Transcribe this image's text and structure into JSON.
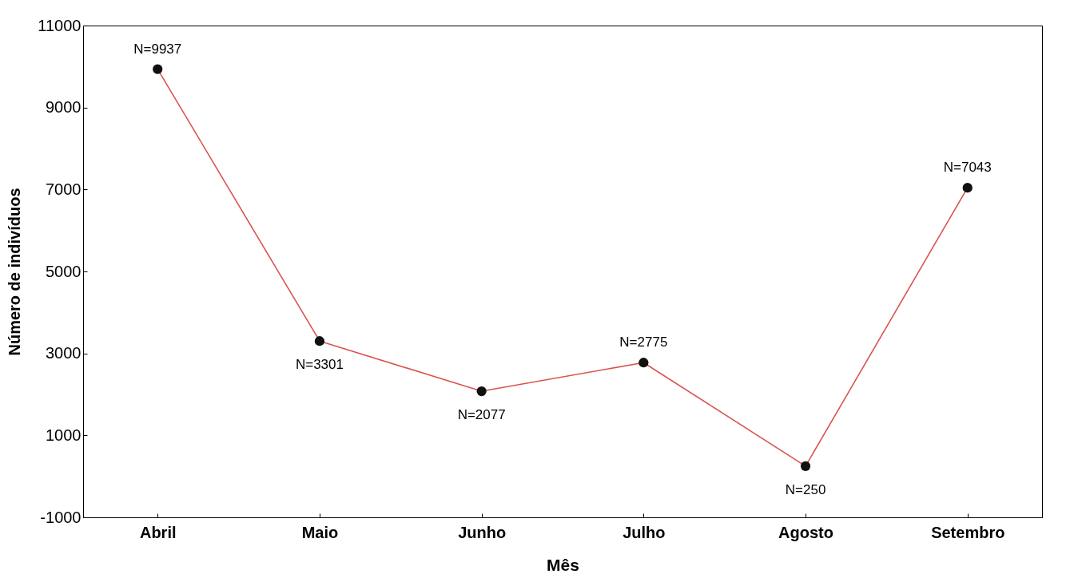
{
  "chart_data": {
    "type": "line",
    "xlabel": "Mês",
    "ylabel": "Número de indivíduos",
    "categories": [
      "Abril",
      "Maio",
      "Junho",
      "Julho",
      "Agosto",
      "Setembro"
    ],
    "series": [
      {
        "color": "#d9544f",
        "values": [
          9937,
          3301,
          2077,
          2775,
          250,
          7043
        ],
        "value_labels": [
          "N=9937",
          "N=3301",
          "N=2077",
          "N=2775",
          "N=250",
          "N=7043"
        ]
      }
    ],
    "ylim": [
      -1000,
      11000
    ],
    "yticks": [
      -1000,
      1000,
      3000,
      5000,
      7000,
      9000,
      11000
    ],
    "grid": false,
    "marker": "circle",
    "line_style": "solid",
    "legend": false
  }
}
